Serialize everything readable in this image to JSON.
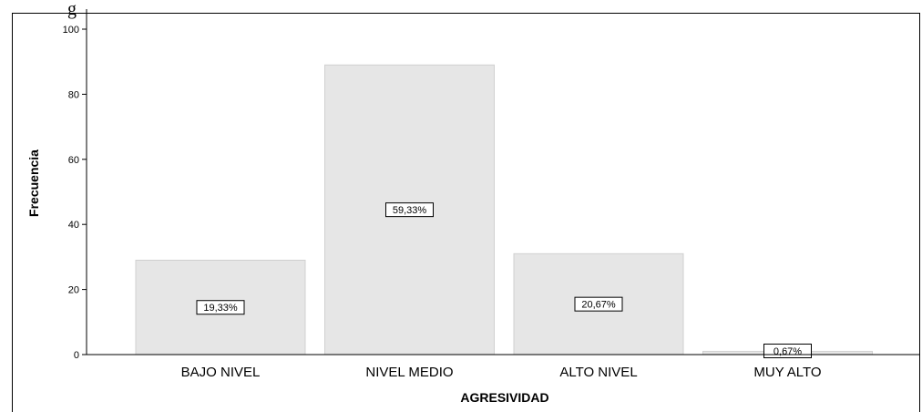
{
  "header_fragment": "g",
  "chart_data": {
    "type": "bar",
    "title": "",
    "xlabel": "AGRESIVIDAD",
    "ylabel": "Frecuencia",
    "ylim": [
      0,
      100
    ],
    "yticks": [
      0,
      20,
      40,
      60,
      80,
      100
    ],
    "categories": [
      "BAJO NIVEL",
      "NIVEL MEDIO",
      "ALTO NIVEL",
      "MUY ALTO"
    ],
    "values": [
      29,
      89,
      31,
      1
    ],
    "data_labels": [
      "19,33%",
      "59,33%",
      "20,67%",
      "0,67%"
    ],
    "grid": false,
    "legend": "none",
    "colors": {
      "bar": "#e6e6e6",
      "bar_edge": "#d0d0d0",
      "axis": "#000000",
      "text": "#000000"
    }
  }
}
